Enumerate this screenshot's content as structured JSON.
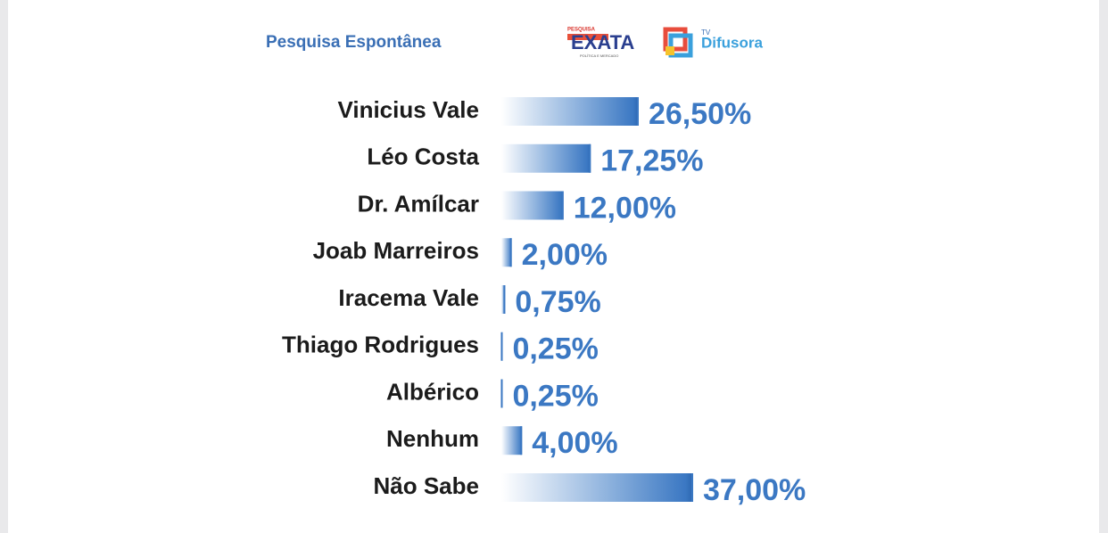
{
  "chart_data": {
    "type": "bar",
    "orientation": "horizontal",
    "title": "Pesquisa Espontânea",
    "categories": [
      "Vinicius Vale",
      "Léo Costa",
      "Dr. Amílcar",
      "Joab Marreiros",
      "Iracema Vale",
      "Thiago Rodrigues",
      "Albérico",
      "Nenhum",
      "Não Sabe"
    ],
    "values": [
      26.5,
      17.25,
      12,
      2,
      0.75,
      0.25,
      0.25,
      4,
      37
    ],
    "value_labels": [
      "26,50%",
      "17,25%",
      "12,00%",
      "2,00%",
      "0,75%",
      "0,25%",
      "0,25%",
      "4,00%",
      "37,00%"
    ],
    "color": "#3b78c3"
  },
  "logos": {
    "exata_top": "PESQUISA",
    "exata": "EXATA",
    "exata_sub": "POLÍTICA E MERCADO",
    "tv": "TV",
    "difusora": "Difusora"
  }
}
